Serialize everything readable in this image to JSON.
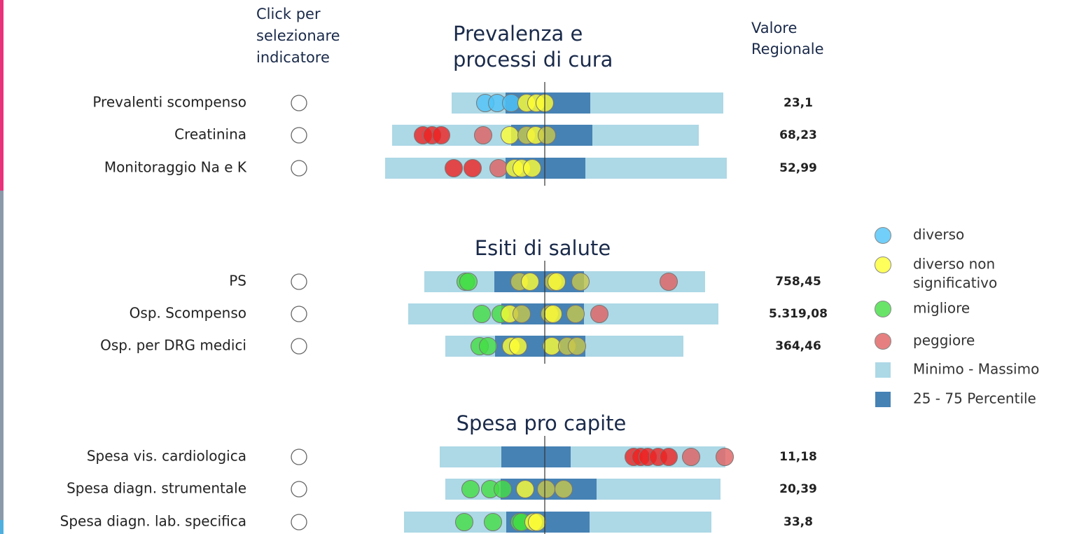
{
  "header": {
    "select_label": [
      "Click per",
      "selezionare",
      "indicatore"
    ],
    "value_label": [
      "Valore",
      "Regionale"
    ]
  },
  "sections": [
    {
      "title": [
        "Prevalenza e",
        "processi di cura"
      ],
      "rows": [
        {
          "label": "Prevalenti scompenso",
          "value": "23,1"
        },
        {
          "label": "Creatinina",
          "value": "68,23"
        },
        {
          "label": "Monitoraggio Na e K",
          "value": "52,99"
        }
      ]
    },
    {
      "title": [
        "Esiti di salute"
      ],
      "rows": [
        {
          "label": "PS",
          "value": "758,45"
        },
        {
          "label": "Osp. Scompenso",
          "value": "5.319,08"
        },
        {
          "label": "Osp. per DRG medici",
          "value": "364,46"
        }
      ]
    },
    {
      "title": [
        "Spesa pro capite"
      ],
      "rows": [
        {
          "label": "Spesa vis. cardiologica",
          "value": "11,18"
        },
        {
          "label": "Spesa  diagn. strumentale",
          "value": "20,39"
        },
        {
          "label": "Spesa diagn. lab. specifica",
          "value": "33,8"
        }
      ]
    }
  ],
  "legend": [
    {
      "label": [
        "diverso"
      ]
    },
    {
      "label": [
        "diverso non",
        "significativo"
      ]
    },
    {
      "label": [
        "migliore"
      ]
    },
    {
      "label": [
        "peggiore"
      ]
    },
    {
      "label": [
        "Minimo - Massimo"
      ]
    },
    {
      "label": [
        "25 - 75 Percentile"
      ]
    }
  ]
}
